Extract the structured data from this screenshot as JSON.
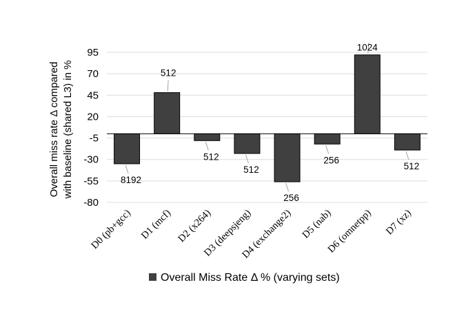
{
  "chart_data": {
    "type": "bar",
    "categories": [
      "D0 (pb+gcc)",
      "D1 (mcf)",
      "D2 (x264)",
      "D3 (deepsjeng)",
      "D4 (exchange2)",
      "D5 (nab)",
      "D6 (omnetpp)",
      "D7 (xz)"
    ],
    "series": [
      {
        "name": "Overall Miss Rate Δ % (varying sets)",
        "values": [
          -35,
          48,
          -8,
          -23,
          -56,
          -12,
          92,
          -19
        ],
        "data_labels": [
          "8192",
          "512",
          "512",
          "512",
          "256",
          "256",
          "1024",
          "512"
        ]
      }
    ],
    "ylabel_lines": [
      "Overall miss rate Δ compared",
      "with baseline (shared L3) in %"
    ],
    "xlabel": "",
    "ylim": [
      -80,
      95
    ],
    "yticks": [
      95,
      70,
      45,
      20,
      -5,
      -30,
      -55,
      -80
    ],
    "grid": "horizontal",
    "legend_position": "bottom",
    "bar_color": "#404040"
  }
}
